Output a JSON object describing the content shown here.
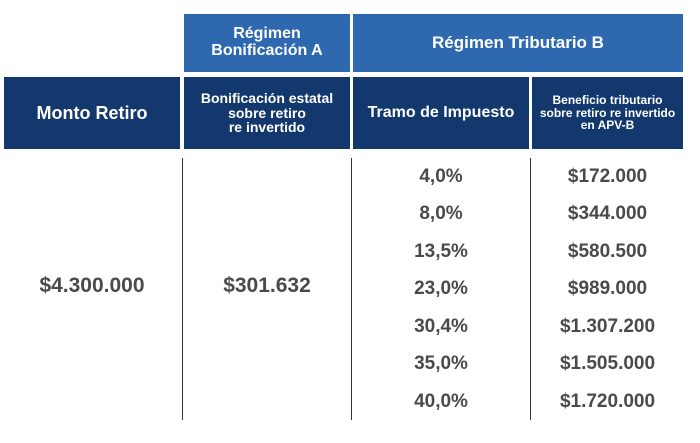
{
  "header_top": {
    "regimen_a": "Régimen\nBonificación A",
    "regimen_b": "Régimen Tributario B"
  },
  "header_cols": {
    "monto_retiro": "Monto Retiro",
    "bonificacion": "Bonificación estatal\nsobre retiro\nre invertido",
    "tramo": "Tramo de Impuesto",
    "beneficio": "Beneficio tributario\nsobre retiro re invertido\nen APV-B"
  },
  "monto_value": "$4.300.000",
  "bonificacion_value": "$301.632",
  "rows": [
    {
      "tramo": "4,0%",
      "beneficio": "$172.000"
    },
    {
      "tramo": "8,0%",
      "beneficio": "$344.000"
    },
    {
      "tramo": "13,5%",
      "beneficio": "$580.500"
    },
    {
      "tramo": "23,0%",
      "beneficio": "$989.000"
    },
    {
      "tramo": "30,4%",
      "beneficio": "$1.307.200"
    },
    {
      "tramo": "35,0%",
      "beneficio": "$1.505.000"
    },
    {
      "tramo": "40,0%",
      "beneficio": "$1.720.000"
    }
  ],
  "colors": {
    "header_light": "#2e69b0",
    "header_dark": "#13386e",
    "value_text": "#4a4a4a"
  }
}
